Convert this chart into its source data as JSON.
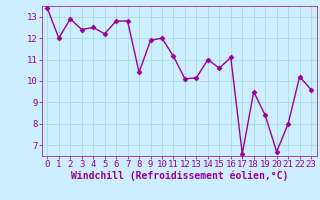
{
  "x": [
    0,
    1,
    2,
    3,
    4,
    5,
    6,
    7,
    8,
    9,
    10,
    11,
    12,
    13,
    14,
    15,
    16,
    17,
    18,
    19,
    20,
    21,
    22,
    23
  ],
  "y": [
    13.4,
    12.0,
    12.9,
    12.4,
    12.5,
    12.2,
    12.8,
    12.8,
    10.4,
    11.9,
    12.0,
    11.15,
    10.1,
    10.15,
    11.0,
    10.6,
    11.1,
    6.6,
    9.5,
    8.4,
    6.7,
    8.0,
    10.2,
    9.6
  ],
  "line_color": "#990099",
  "marker": "D",
  "markersize": 2.5,
  "background_color": "#cceeff",
  "grid_color": "#aadddd",
  "xlabel": "Windchill (Refroidissement éolien,°C)",
  "ylim": [
    6.5,
    13.5
  ],
  "xlim": [
    -0.5,
    23.5
  ],
  "yticks": [
    7,
    8,
    9,
    10,
    11,
    12,
    13
  ],
  "xticks": [
    0,
    1,
    2,
    3,
    4,
    5,
    6,
    7,
    8,
    9,
    10,
    11,
    12,
    13,
    14,
    15,
    16,
    17,
    18,
    19,
    20,
    21,
    22,
    23
  ],
  "tick_fontsize": 6.5,
  "xlabel_fontsize": 7,
  "linewidth": 1.0,
  "text_color": "#990099"
}
